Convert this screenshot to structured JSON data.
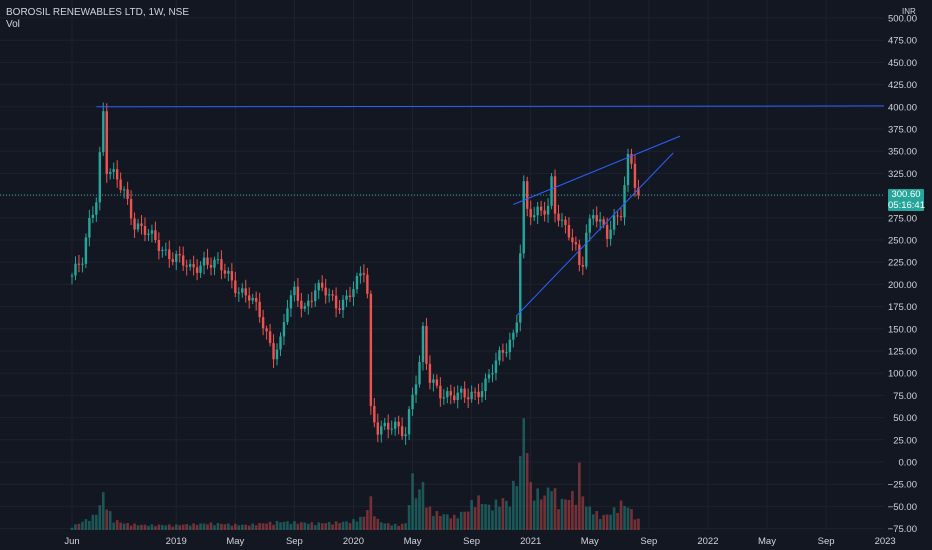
{
  "legend": {
    "symbol": "BOROSIL RENEWABLES LTD, 1W, NSE",
    "volume_label": "Vol"
  },
  "currency": "INR",
  "price_tag": {
    "price": "300.60",
    "countdown": "05:16:41"
  },
  "colors": {
    "background": "#131722",
    "up": "#26a69a",
    "down": "#ef5350",
    "trendline": "#2962ff",
    "axis_text": "#d1d4dc"
  },
  "chart_data": {
    "type": "candlestick",
    "title": "BOROSIL RENEWABLES LTD, 1W, NSE",
    "y_ticks": [
      "500.00",
      "475.00",
      "450.00",
      "425.00",
      "400.00",
      "375.00",
      "350.00",
      "325.00",
      "300.00",
      "275.00",
      "250.00",
      "225.00",
      "200.00",
      "175.00",
      "150.00",
      "125.00",
      "100.00",
      "75.00",
      "50.00",
      "25.00",
      "0.00",
      "−25.00",
      "−50.00",
      "−75.00"
    ],
    "x_ticks": [
      {
        "label": "Jun",
        "t": 0
      },
      {
        "label": "2019",
        "t": 30
      },
      {
        "label": "May",
        "t": 47
      },
      {
        "label": "Sep",
        "t": 64
      },
      {
        "label": "2020",
        "t": 81
      },
      {
        "label": "May",
        "t": 98
      },
      {
        "label": "Sep",
        "t": 115
      },
      {
        "label": "2021",
        "t": 132
      },
      {
        "label": "May",
        "t": 149
      },
      {
        "label": "Sep",
        "t": 166
      },
      {
        "label": "2022",
        "t": 183
      },
      {
        "label": "May",
        "t": 200
      },
      {
        "label": "Sep",
        "t": 217
      },
      {
        "label": "2023",
        "t": 234
      }
    ],
    "ylim": [
      -75,
      500
    ],
    "last_price": 300.6,
    "close_path": [
      [
        0,
        210
      ],
      [
        3,
        225
      ],
      [
        5,
        270
      ],
      [
        7,
        300
      ],
      [
        9,
        395
      ],
      [
        10,
        330
      ],
      [
        12,
        320
      ],
      [
        15,
        305
      ],
      [
        18,
        270
      ],
      [
        22,
        255
      ],
      [
        26,
        240
      ],
      [
        30,
        230
      ],
      [
        34,
        215
      ],
      [
        38,
        228
      ],
      [
        42,
        220
      ],
      [
        45,
        210
      ],
      [
        48,
        195
      ],
      [
        51,
        185
      ],
      [
        54,
        165
      ],
      [
        58,
        125
      ],
      [
        60,
        135
      ],
      [
        62,
        175
      ],
      [
        64,
        190
      ],
      [
        67,
        175
      ],
      [
        70,
        195
      ],
      [
        73,
        190
      ],
      [
        76,
        178
      ],
      [
        79,
        185
      ],
      [
        82,
        200
      ],
      [
        84,
        215
      ],
      [
        85,
        190
      ],
      [
        86,
        60
      ],
      [
        88,
        40
      ],
      [
        91,
        38
      ],
      [
        94,
        36
      ],
      [
        96,
        35
      ],
      [
        98,
        80
      ],
      [
        100,
        110
      ],
      [
        101,
        145
      ],
      [
        102,
        110
      ],
      [
        103,
        90
      ],
      [
        106,
        80
      ],
      [
        110,
        75
      ],
      [
        113,
        72
      ],
      [
        116,
        78
      ],
      [
        119,
        90
      ],
      [
        122,
        110
      ],
      [
        125,
        130
      ],
      [
        127,
        145
      ],
      [
        128,
        165
      ],
      [
        129,
        240
      ],
      [
        130,
        310
      ],
      [
        131,
        280
      ],
      [
        133,
        275
      ],
      [
        135,
        285
      ],
      [
        137,
        290
      ],
      [
        138,
        320
      ],
      [
        139,
        285
      ],
      [
        141,
        265
      ],
      [
        143,
        255
      ],
      [
        145,
        240
      ],
      [
        146,
        225
      ],
      [
        147,
        230
      ],
      [
        148,
        260
      ],
      [
        150,
        280
      ],
      [
        152,
        265
      ],
      [
        154,
        255
      ],
      [
        156,
        275
      ],
      [
        158,
        285
      ],
      [
        160,
        340
      ],
      [
        161,
        335
      ],
      [
        162,
        310
      ],
      [
        163,
        300
      ]
    ],
    "volume_path": [
      [
        0,
        2
      ],
      [
        6,
        8
      ],
      [
        8,
        14
      ],
      [
        9,
        22
      ],
      [
        10,
        14
      ],
      [
        12,
        6
      ],
      [
        15,
        4
      ],
      [
        20,
        3
      ],
      [
        30,
        3
      ],
      [
        40,
        4
      ],
      [
        50,
        3
      ],
      [
        60,
        5
      ],
      [
        70,
        4
      ],
      [
        80,
        5
      ],
      [
        84,
        8
      ],
      [
        86,
        18
      ],
      [
        88,
        6
      ],
      [
        90,
        4
      ],
      [
        94,
        3
      ],
      [
        96,
        4
      ],
      [
        98,
        30
      ],
      [
        100,
        22
      ],
      [
        101,
        30
      ],
      [
        102,
        14
      ],
      [
        105,
        10
      ],
      [
        110,
        8
      ],
      [
        114,
        12
      ],
      [
        116,
        20
      ],
      [
        120,
        14
      ],
      [
        124,
        18
      ],
      [
        126,
        16
      ],
      [
        128,
        36
      ],
      [
        129,
        40
      ],
      [
        130,
        70
      ],
      [
        131,
        48
      ],
      [
        132,
        26
      ],
      [
        134,
        22
      ],
      [
        136,
        20
      ],
      [
        138,
        28
      ],
      [
        140,
        16
      ],
      [
        145,
        22
      ],
      [
        146,
        36
      ],
      [
        147,
        22
      ],
      [
        148,
        14
      ],
      [
        150,
        12
      ],
      [
        152,
        8
      ],
      [
        154,
        9
      ],
      [
        156,
        12
      ],
      [
        158,
        16
      ],
      [
        160,
        14
      ],
      [
        163,
        6
      ]
    ],
    "lines": [
      {
        "name": "resistance-400",
        "from": [
          7,
          400
        ],
        "to": [
          240,
          401
        ]
      },
      {
        "name": "wedge-upper",
        "from": [
          127,
          290
        ],
        "to": [
          175,
          367
        ]
      },
      {
        "name": "wedge-lower",
        "from": [
          128,
          165
        ],
        "to": [
          173,
          348
        ]
      }
    ]
  }
}
